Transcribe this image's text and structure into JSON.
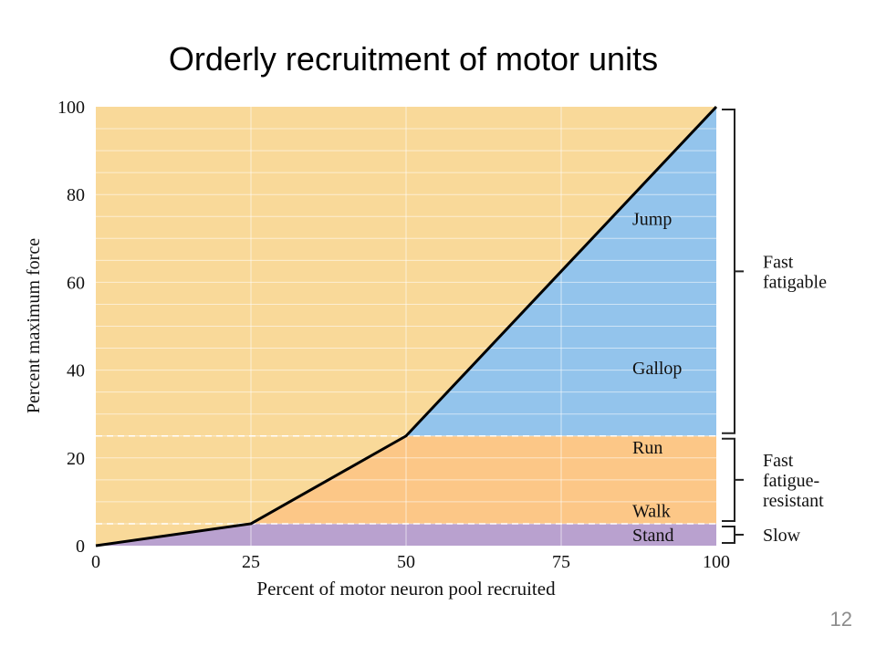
{
  "slide": {
    "title": "Orderly recruitment of motor units",
    "page_number": "12"
  },
  "chart_data": {
    "type": "line",
    "title": "Orderly recruitment of motor units",
    "xlabel": "Percent of motor neuron pool recruited",
    "ylabel": "Percent maximum force",
    "xlim": [
      0,
      100
    ],
    "ylim": [
      0,
      100
    ],
    "x_ticks": [
      "0",
      "25",
      "50",
      "75",
      "100"
    ],
    "y_ticks": [
      "0",
      "20",
      "40",
      "60",
      "80",
      "100"
    ],
    "grid": true,
    "series": [
      {
        "x": [
          0,
          25,
          50,
          100
        ],
        "y": [
          0,
          5,
          25,
          100
        ]
      }
    ],
    "regions": [
      {
        "label": "Stand",
        "y_from": 0,
        "y_to": 5,
        "color": "#b9a1cf"
      },
      {
        "label": "Walk",
        "y_from": 5,
        "y_to": 25,
        "color": "#fcc787"
      },
      {
        "label": "Run",
        "y_from": 5,
        "y_to": 25,
        "color": "#fcc787"
      },
      {
        "label": "Gallop",
        "y_from": 25,
        "y_to": 100,
        "color": "#93c4ec"
      },
      {
        "label": "Jump",
        "y_from": 25,
        "y_to": 100,
        "color": "#93c4ec"
      }
    ],
    "region_labels": [
      {
        "text": "Stand",
        "y": 2.5
      },
      {
        "text": "Walk",
        "y": 8
      },
      {
        "text": "Run",
        "y": 22.5
      },
      {
        "text": "Gallop",
        "y": 40.5
      },
      {
        "text": "Jump",
        "y": 74.5
      }
    ],
    "unit_groups": [
      {
        "lines": [
          "Slow"
        ],
        "y_from": 0,
        "y_to": 5
      },
      {
        "lines": [
          "Fast",
          "fatigue-",
          "resistant"
        ],
        "y_from": 5,
        "y_to": 25
      },
      {
        "lines": [
          "Fast",
          "fatigable"
        ],
        "y_from": 25,
        "y_to": 100
      }
    ],
    "threshold_lines": [
      5,
      25
    ],
    "colors": {
      "background": "#f9d999",
      "grid": "#ffffff",
      "line": "#000000",
      "threshold": "#ffffff"
    }
  }
}
